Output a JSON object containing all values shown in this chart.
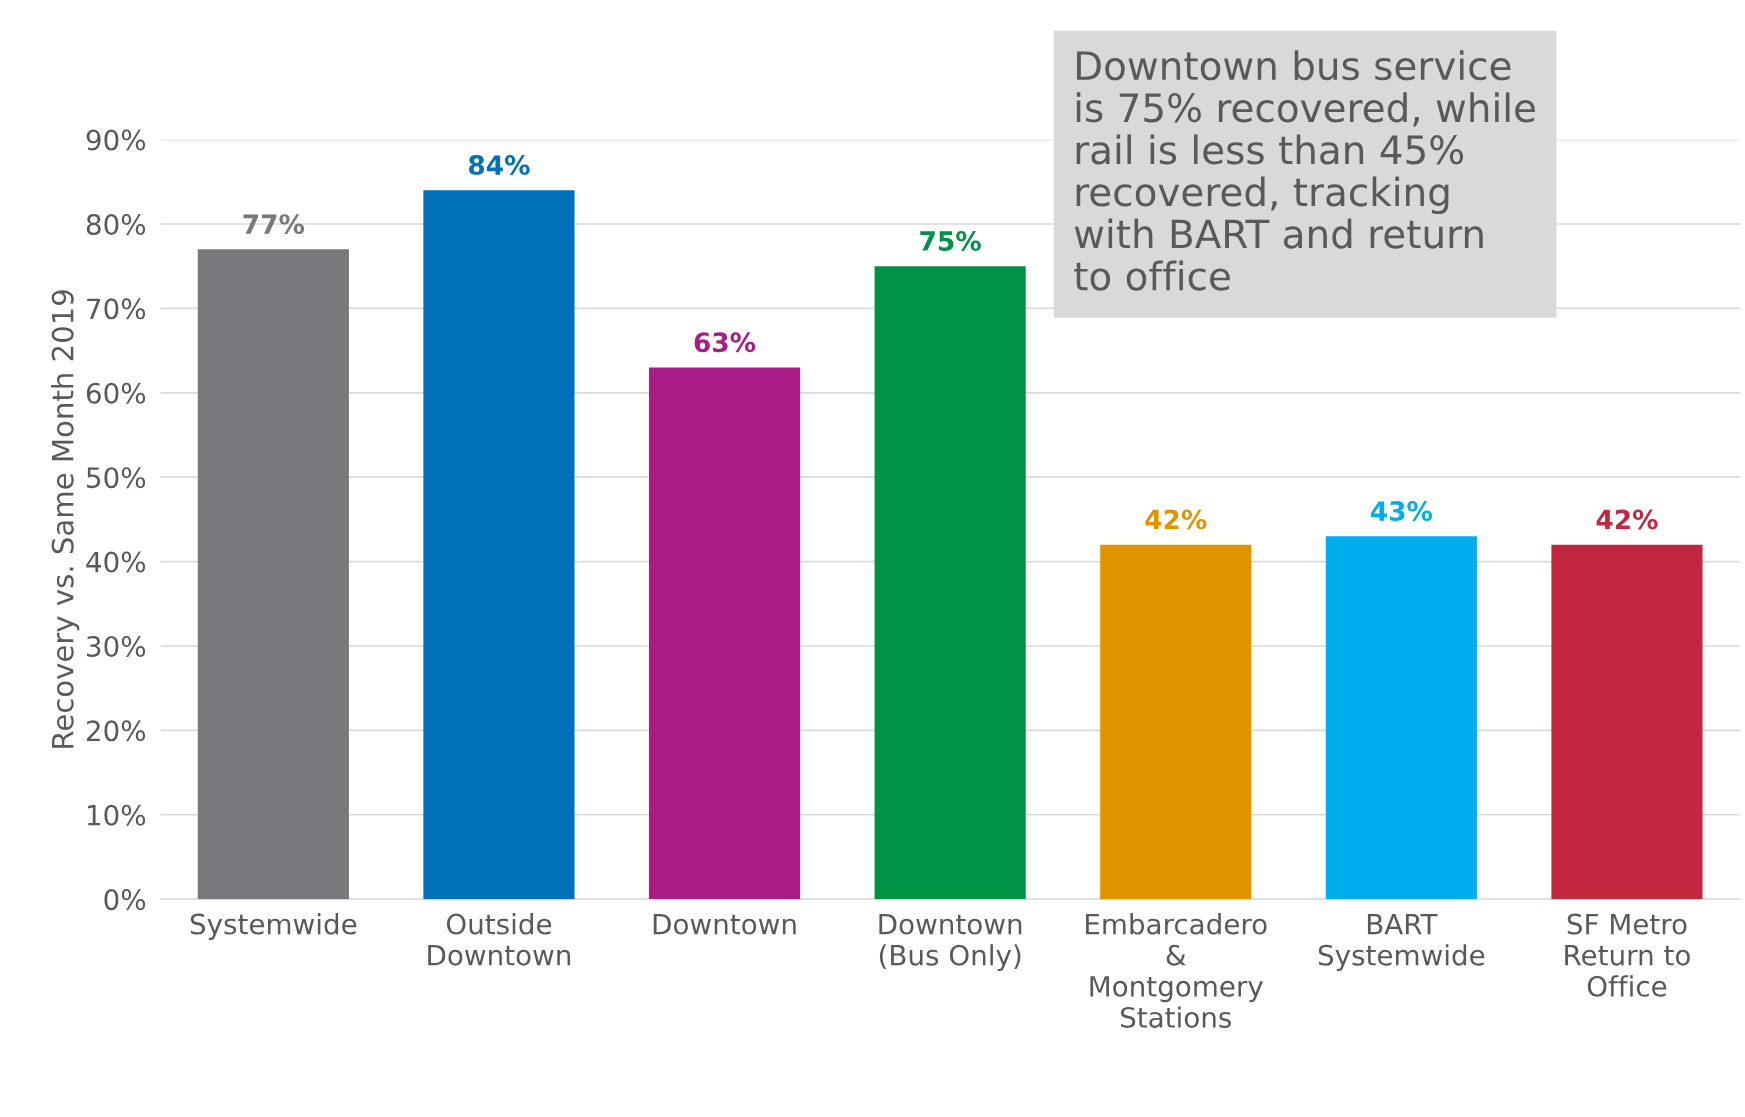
{
  "chart_data": {
    "type": "bar",
    "ylabel": "Recovery vs. Same Month 2019",
    "categories": [
      "Systemwide",
      "Outside\nDowntown",
      "Downtown",
      "Downtown\n(Bus Only)",
      "Embarcadero\n&\nMontgomery\nStations",
      "BART\nSystemwide",
      "SF Metro\nReturn to\nOffice"
    ],
    "values": [
      77,
      84,
      63,
      75,
      42,
      43,
      42
    ],
    "value_labels": [
      "77%",
      "84%",
      "63%",
      "75%",
      "42%",
      "43%",
      "42%"
    ],
    "colors": [
      "#77787b",
      "#0070bb",
      "#ab1c86",
      "#009245",
      "#e09400",
      "#00adef",
      "#c1283f"
    ],
    "ylim": [
      0,
      90
    ],
    "yticks": [
      {
        "value": 0,
        "label": "0%"
      },
      {
        "value": 10,
        "label": "10%"
      },
      {
        "value": 20,
        "label": "20%"
      },
      {
        "value": 30,
        "label": "30%"
      },
      {
        "value": 40,
        "label": "40%"
      },
      {
        "value": 50,
        "label": "50%"
      },
      {
        "value": 60,
        "label": "60%"
      },
      {
        "value": 70,
        "label": "70%"
      },
      {
        "value": 80,
        "label": "80%"
      },
      {
        "value": 90,
        "label": "90%"
      }
    ],
    "grid": "y",
    "annotations": [
      "Downtown bus service\nis 75% recovered, while\nrail is less than 45%\nrecovered, tracking\nwith BART and return\nto office"
    ]
  }
}
